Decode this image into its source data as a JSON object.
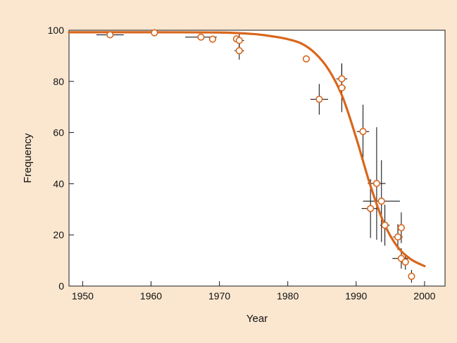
{
  "colors": {
    "background": "#fbe7d0",
    "plot_background": "#ffffff",
    "series": "#d9661c",
    "error_bars": "#1a1a1a",
    "axis": "#1a1a1a"
  },
  "chart_data": {
    "type": "scatter",
    "title": "",
    "xlabel": "Year",
    "ylabel": "Frequency",
    "xlim": [
      1948,
      2003
    ],
    "ylim": [
      0,
      100
    ],
    "xticks": [
      1950,
      1960,
      1970,
      1980,
      1990,
      2000
    ],
    "yticks": [
      0,
      20,
      40,
      60,
      80,
      100
    ],
    "grid": false,
    "legend": "none",
    "points": [
      {
        "x": 1954,
        "y": 98.2,
        "xerr": 2.0,
        "yerr": 0
      },
      {
        "x": 1960.5,
        "y": 99.0,
        "xerr": 0,
        "yerr": 0
      },
      {
        "x": 1967.3,
        "y": 97.3,
        "xerr": 2.3,
        "yerr": 0
      },
      {
        "x": 1969.0,
        "y": 96.5,
        "xerr": 0,
        "yerr": 0
      },
      {
        "x": 1972.5,
        "y": 96.6,
        "xerr": 0,
        "yerr": 0
      },
      {
        "x": 1972.9,
        "y": 96.0,
        "xerr": 0.7,
        "yerr": 3.0
      },
      {
        "x": 1972.9,
        "y": 92.0,
        "xerr": 0.7,
        "yerr": 3.5
      },
      {
        "x": 1982.7,
        "y": 88.8,
        "xerr": 0,
        "yerr": 0
      },
      {
        "x": 1984.6,
        "y": 73.0,
        "xerr": 1.3,
        "yerr": 6.0
      },
      {
        "x": 1987.9,
        "y": 81.0,
        "xerr": 0.8,
        "yerr": 6.0
      },
      {
        "x": 1987.9,
        "y": 77.5,
        "xerr": 0.6,
        "yerr": 9.5
      },
      {
        "x": 1991.0,
        "y": 60.4,
        "xerr": 0.9,
        "yerr": 10.5
      },
      {
        "x": 1992.1,
        "y": 30.3,
        "xerr": 1.3,
        "yerr": 11.5
      },
      {
        "x": 1993.0,
        "y": 40.1,
        "xerr": 1.3,
        "yerr": 22.0
      },
      {
        "x": 1993.7,
        "y": 33.2,
        "xerr": 2.7,
        "yerr": 16.0
      },
      {
        "x": 1994.2,
        "y": 23.8,
        "xerr": 0.7,
        "yerr": 8.0
      },
      {
        "x": 1996.1,
        "y": 19.2,
        "xerr": 0.7,
        "yerr": 5.0
      },
      {
        "x": 1996.6,
        "y": 22.8,
        "xerr": 0,
        "yerr": 6.0
      },
      {
        "x": 1996.6,
        "y": 10.8,
        "xerr": 1.3,
        "yerr": 4.0
      },
      {
        "x": 1997.2,
        "y": 9.4,
        "xerr": 0,
        "yerr": 3.0
      },
      {
        "x": 1998.1,
        "y": 3.8,
        "xerr": 0,
        "yerr": 2.5
      }
    ],
    "fit_curve": {
      "x": [
        1948,
        1960,
        1970,
        1975,
        1978,
        1980,
        1982,
        1984,
        1986,
        1988,
        1990,
        1992,
        1994,
        1996,
        1998,
        2000
      ],
      "y": [
        99.2,
        99.2,
        99.1,
        98.5,
        97.5,
        96.5,
        94.8,
        91.0,
        84.5,
        74.0,
        58.0,
        40.0,
        25.0,
        15.5,
        10.5,
        7.8
      ]
    }
  }
}
